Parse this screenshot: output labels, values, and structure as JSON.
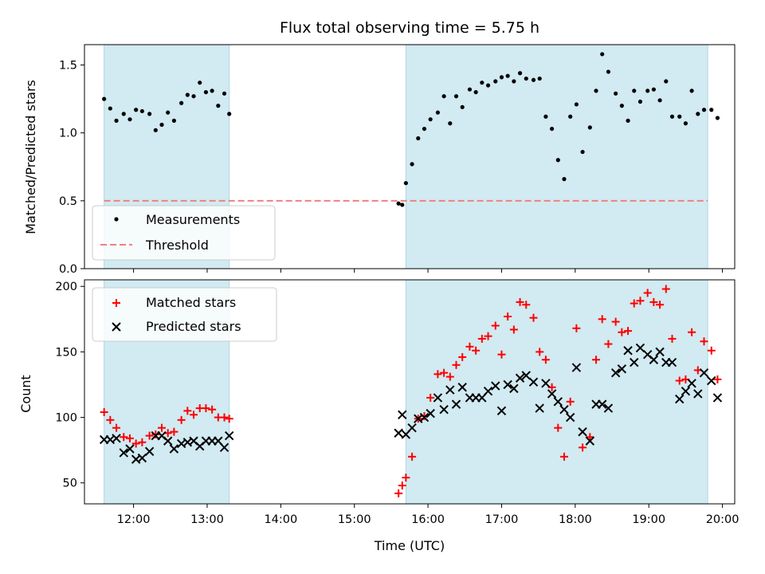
{
  "chart_data": {
    "type": "scatter",
    "title": "Flux total observing time = 5.75 h",
    "xlabel": "Time (UTC)",
    "x_ticks": [
      "12:00",
      "13:00",
      "14:00",
      "15:00",
      "16:00",
      "17:00",
      "18:00",
      "19:00",
      "20:00"
    ],
    "xlim": [
      "11:20",
      "20:10"
    ],
    "shaded_intervals": [
      [
        "11:36",
        "13:18"
      ],
      [
        "15:42",
        "19:48"
      ]
    ],
    "top": {
      "ylabel": "Matched/Predicted stars",
      "ylim": [
        0,
        1.65
      ],
      "y_ticks": [
        "0.0",
        "0.5",
        "1.0",
        "1.5"
      ],
      "threshold": 0.5,
      "legend_location": "lower-left",
      "series": [
        {
          "name": "Measurements",
          "marker": "dot",
          "color": "#000000",
          "points": [
            [
              "11:36",
              1.25
            ],
            [
              "11:41",
              1.18
            ],
            [
              "11:46",
              1.09
            ],
            [
              "11:52",
              1.14
            ],
            [
              "11:57",
              1.1
            ],
            [
              "12:02",
              1.17
            ],
            [
              "12:07",
              1.16
            ],
            [
              "12:13",
              1.14
            ],
            [
              "12:18",
              1.02
            ],
            [
              "12:23",
              1.06
            ],
            [
              "12:28",
              1.15
            ],
            [
              "12:33",
              1.09
            ],
            [
              "12:39",
              1.22
            ],
            [
              "12:44",
              1.28
            ],
            [
              "12:49",
              1.27
            ],
            [
              "12:54",
              1.37
            ],
            [
              "12:59",
              1.3
            ],
            [
              "13:04",
              1.31
            ],
            [
              "13:09",
              1.2
            ],
            [
              "13:14",
              1.29
            ],
            [
              "13:18",
              1.14
            ],
            [
              "15:36",
              0.48
            ],
            [
              "15:39",
              0.47
            ],
            [
              "15:42",
              0.63
            ],
            [
              "15:47",
              0.77
            ],
            [
              "15:52",
              0.96
            ],
            [
              "15:57",
              1.03
            ],
            [
              "16:02",
              1.1
            ],
            [
              "16:08",
              1.15
            ],
            [
              "16:13",
              1.27
            ],
            [
              "16:18",
              1.07
            ],
            [
              "16:23",
              1.27
            ],
            [
              "16:28",
              1.19
            ],
            [
              "16:34",
              1.32
            ],
            [
              "16:39",
              1.3
            ],
            [
              "16:44",
              1.37
            ],
            [
              "16:49",
              1.35
            ],
            [
              "16:55",
              1.38
            ],
            [
              "17:00",
              1.41
            ],
            [
              "17:05",
              1.42
            ],
            [
              "17:10",
              1.38
            ],
            [
              "17:15",
              1.44
            ],
            [
              "17:20",
              1.4
            ],
            [
              "17:26",
              1.39
            ],
            [
              "17:31",
              1.4
            ],
            [
              "17:36",
              1.12
            ],
            [
              "17:41",
              1.03
            ],
            [
              "17:46",
              0.8
            ],
            [
              "17:51",
              0.66
            ],
            [
              "17:56",
              1.12
            ],
            [
              "18:01",
              1.21
            ],
            [
              "18:06",
              0.86
            ],
            [
              "18:12",
              1.04
            ],
            [
              "18:17",
              1.31
            ],
            [
              "18:22",
              1.58
            ],
            [
              "18:27",
              1.45
            ],
            [
              "18:33",
              1.29
            ],
            [
              "18:38",
              1.2
            ],
            [
              "18:43",
              1.09
            ],
            [
              "18:48",
              1.31
            ],
            [
              "18:53",
              1.23
            ],
            [
              "18:59",
              1.31
            ],
            [
              "19:04",
              1.32
            ],
            [
              "19:09",
              1.24
            ],
            [
              "19:14",
              1.38
            ],
            [
              "19:19",
              1.12
            ],
            [
              "19:25",
              1.12
            ],
            [
              "19:30",
              1.07
            ],
            [
              "19:35",
              1.31
            ],
            [
              "19:40",
              1.14
            ],
            [
              "19:45",
              1.17
            ],
            [
              "19:51",
              1.17
            ],
            [
              "19:56",
              1.11
            ]
          ]
        },
        {
          "name": "Threshold",
          "marker": "dashed-line",
          "color": "#f08080"
        }
      ]
    },
    "bottom": {
      "ylabel": "Count",
      "ylim": [
        34,
        205
      ],
      "y_ticks": [
        "50",
        "100",
        "150",
        "200"
      ],
      "legend_location": "upper-left",
      "series": [
        {
          "name": "Matched stars",
          "marker": "plus",
          "color": "#ff0000",
          "points": [
            [
              "11:36",
              104
            ],
            [
              "11:41",
              98
            ],
            [
              "11:46",
              92
            ],
            [
              "11:52",
              85
            ],
            [
              "11:57",
              84
            ],
            [
              "12:02",
              80
            ],
            [
              "12:07",
              81
            ],
            [
              "12:13",
              86
            ],
            [
              "12:18",
              87
            ],
            [
              "12:23",
              92
            ],
            [
              "12:28",
              88
            ],
            [
              "12:33",
              89
            ],
            [
              "12:39",
              98
            ],
            [
              "12:44",
              105
            ],
            [
              "12:49",
              102
            ],
            [
              "12:54",
              107
            ],
            [
              "12:59",
              107
            ],
            [
              "13:04",
              106
            ],
            [
              "13:09",
              100
            ],
            [
              "13:14",
              100
            ],
            [
              "13:18",
              99
            ],
            [
              "15:36",
              42
            ],
            [
              "15:39",
              48
            ],
            [
              "15:42",
              54
            ],
            [
              "15:47",
              70
            ],
            [
              "15:52",
              99
            ],
            [
              "15:57",
              101
            ],
            [
              "16:02",
              115
            ],
            [
              "16:08",
              133
            ],
            [
              "16:13",
              134
            ],
            [
              "16:18",
              131
            ],
            [
              "16:23",
              140
            ],
            [
              "16:28",
              146
            ],
            [
              "16:34",
              154
            ],
            [
              "16:39",
              151
            ],
            [
              "16:44",
              160
            ],
            [
              "16:49",
              162
            ],
            [
              "16:55",
              170
            ],
            [
              "17:00",
              148
            ],
            [
              "17:05",
              177
            ],
            [
              "17:10",
              167
            ],
            [
              "17:15",
              188
            ],
            [
              "17:20",
              186
            ],
            [
              "17:26",
              176
            ],
            [
              "17:31",
              150
            ],
            [
              "17:36",
              144
            ],
            [
              "17:41",
              123
            ],
            [
              "17:46",
              92
            ],
            [
              "17:51",
              70
            ],
            [
              "17:56",
              112
            ],
            [
              "18:01",
              168
            ],
            [
              "18:06",
              77
            ],
            [
              "18:12",
              85
            ],
            [
              "18:17",
              144
            ],
            [
              "18:22",
              175
            ],
            [
              "18:27",
              156
            ],
            [
              "18:33",
              173
            ],
            [
              "18:38",
              165
            ],
            [
              "18:43",
              166
            ],
            [
              "18:48",
              187
            ],
            [
              "18:53",
              189
            ],
            [
              "18:59",
              195
            ],
            [
              "19:04",
              188
            ],
            [
              "19:09",
              186
            ],
            [
              "19:14",
              198
            ],
            [
              "19:19",
              160
            ],
            [
              "19:25",
              128
            ],
            [
              "19:30",
              129
            ],
            [
              "19:35",
              165
            ],
            [
              "19:40",
              136
            ],
            [
              "19:45",
              158
            ],
            [
              "19:51",
              151
            ],
            [
              "19:56",
              129
            ]
          ]
        },
        {
          "name": "Predicted stars",
          "marker": "x",
          "color": "#000000",
          "points": [
            [
              "11:36",
              83
            ],
            [
              "11:41",
              83
            ],
            [
              "11:46",
              84
            ],
            [
              "11:52",
              73
            ],
            [
              "11:57",
              76
            ],
            [
              "12:02",
              68
            ],
            [
              "12:07",
              69
            ],
            [
              "12:13",
              74
            ],
            [
              "12:18",
              86
            ],
            [
              "12:23",
              86
            ],
            [
              "12:28",
              82
            ],
            [
              "12:33",
              76
            ],
            [
              "12:39",
              80
            ],
            [
              "12:44",
              81
            ],
            [
              "12:49",
              82
            ],
            [
              "12:54",
              78
            ],
            [
              "12:59",
              82
            ],
            [
              "13:04",
              82
            ],
            [
              "13:09",
              82
            ],
            [
              "13:14",
              77
            ],
            [
              "13:18",
              86
            ],
            [
              "15:36",
              88
            ],
            [
              "15:39",
              102
            ],
            [
              "15:42",
              87
            ],
            [
              "15:47",
              92
            ],
            [
              "15:52",
              99
            ],
            [
              "15:57",
              100
            ],
            [
              "16:02",
              103
            ],
            [
              "16:08",
              115
            ],
            [
              "16:13",
              106
            ],
            [
              "16:18",
              121
            ],
            [
              "16:23",
              110
            ],
            [
              "16:28",
              123
            ],
            [
              "16:34",
              115
            ],
            [
              "16:39",
              115
            ],
            [
              "16:44",
              115
            ],
            [
              "16:49",
              120
            ],
            [
              "16:55",
              124
            ],
            [
              "17:00",
              105
            ],
            [
              "17:05",
              125
            ],
            [
              "17:10",
              122
            ],
            [
              "17:15",
              130
            ],
            [
              "17:20",
              132
            ],
            [
              "17:26",
              127
            ],
            [
              "17:31",
              107
            ],
            [
              "17:36",
              126
            ],
            [
              "17:41",
              118
            ],
            [
              "17:46",
              112
            ],
            [
              "17:51",
              106
            ],
            [
              "17:56",
              100
            ],
            [
              "18:01",
              138
            ],
            [
              "18:06",
              89
            ],
            [
              "18:12",
              82
            ],
            [
              "18:17",
              110
            ],
            [
              "18:22",
              110
            ],
            [
              "18:27",
              107
            ],
            [
              "18:33",
              134
            ],
            [
              "18:38",
              137
            ],
            [
              "18:43",
              151
            ],
            [
              "18:48",
              142
            ],
            [
              "18:53",
              153
            ],
            [
              "18:59",
              148
            ],
            [
              "19:04",
              144
            ],
            [
              "19:09",
              150
            ],
            [
              "19:14",
              142
            ],
            [
              "19:19",
              142
            ],
            [
              "19:25",
              114
            ],
            [
              "19:30",
              120
            ],
            [
              "19:35",
              126
            ],
            [
              "19:40",
              118
            ],
            [
              "19:45",
              134
            ],
            [
              "19:51",
              128
            ],
            [
              "19:56",
              115
            ]
          ]
        }
      ]
    }
  },
  "colors": {
    "shade": "#add8e6",
    "threshold": "#f08080",
    "matched": "#ff0000",
    "predicted": "#000000",
    "measurement": "#000000"
  }
}
